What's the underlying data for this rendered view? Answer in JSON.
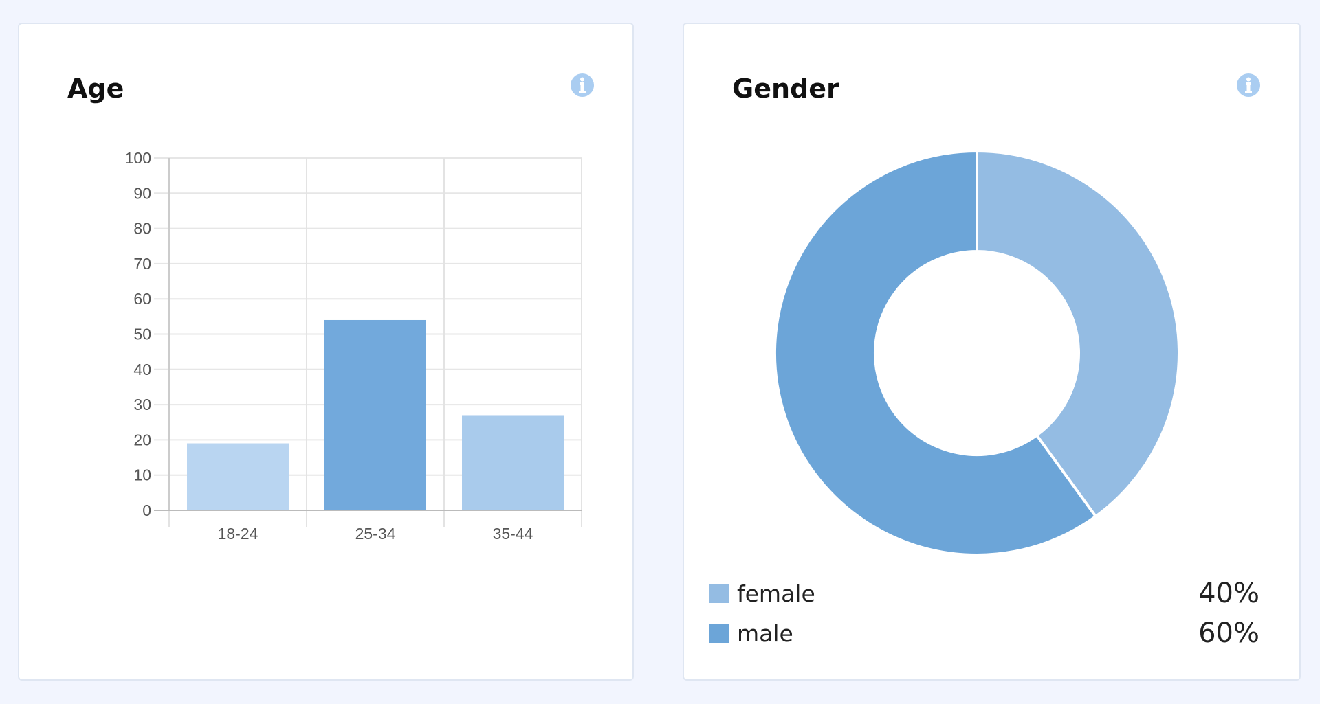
{
  "age_card": {
    "title": "Age",
    "info_icon": "info-icon"
  },
  "gender_card": {
    "title": "Gender",
    "info_icon": "info-icon"
  },
  "colors": {
    "background": "#f2f5fe",
    "bar_light": "#b9d5f1",
    "bar_mid": "#72a9dc",
    "bar_light2": "#a9cbec",
    "female": "#94bce3",
    "male": "#6ca5d8",
    "info": "#aacdf1"
  },
  "chart_data": [
    {
      "type": "bar",
      "title": "Age",
      "categories": [
        "18-24",
        "25-34",
        "35-44"
      ],
      "values": [
        19,
        54,
        27
      ],
      "ylim": [
        0,
        100
      ],
      "yticks": [
        0,
        10,
        20,
        30,
        40,
        50,
        60,
        70,
        80,
        90,
        100
      ],
      "grid": true
    },
    {
      "type": "pie",
      "title": "Gender",
      "donut": true,
      "labels": [
        "female",
        "male"
      ],
      "values": [
        40,
        60
      ],
      "display": [
        "40%",
        "60%"
      ],
      "legend": "bottom"
    }
  ]
}
